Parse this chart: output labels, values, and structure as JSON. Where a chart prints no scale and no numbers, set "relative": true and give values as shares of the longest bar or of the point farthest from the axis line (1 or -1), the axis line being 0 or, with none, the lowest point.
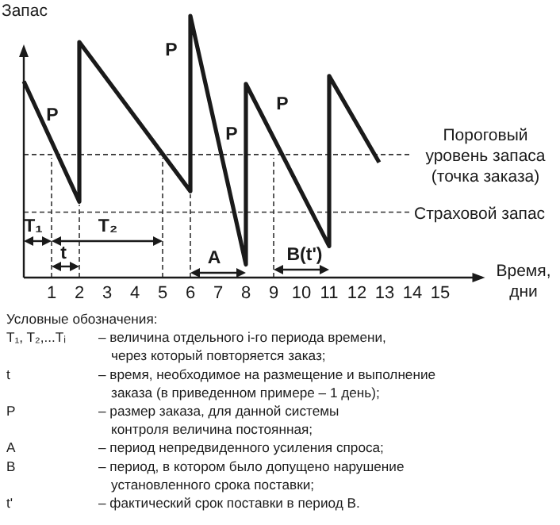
{
  "chart_data": {
    "type": "line",
    "relative": true,
    "ylabel": "Запас",
    "xlabel": "Время,\nдни",
    "xlim": [
      0,
      16.5
    ],
    "xticks": [
      1,
      2,
      3,
      4,
      5,
      6,
      7,
      8,
      9,
      10,
      11,
      12,
      13,
      14,
      15
    ],
    "tick_labels": "x",
    "grid": false,
    "marker": "none",
    "line_style": "solid",
    "series": [
      {
        "color": "#1a1a1a",
        "x": [
          0,
          2,
          2,
          6,
          6,
          8,
          8,
          11,
          11,
          12.8
        ],
        "values": [
          0.75,
          0.29,
          0.9,
          0.33,
          1.0,
          0.05,
          0.74,
          0.12,
          0.77,
          0.44
        ]
      }
    ],
    "ref_lines": [
      {
        "axis": "y",
        "value": 0.47,
        "label": "Пороговый\nуровень запаса\n(точка заказа)",
        "line_style": "dashed"
      },
      {
        "axis": "y",
        "value": 0.25,
        "label": "Страховой запас",
        "line_style": "dashed"
      },
      {
        "axis": "x",
        "value": 1,
        "line_style": "dashed"
      },
      {
        "axis": "x",
        "value": 2,
        "line_style": "dashed"
      },
      {
        "axis": "x",
        "value": 5,
        "line_style": "dashed"
      },
      {
        "axis": "x",
        "value": 6,
        "line_style": "dashed"
      },
      {
        "axis": "x",
        "value": 9,
        "line_style": "dashed"
      }
    ],
    "annotations": [
      "P",
      "P",
      "P",
      "P",
      "T₁",
      "t",
      "T₂",
      "A",
      "B(t')",
      "Условные обозначения:",
      "T₁, T₂,...Tᵢ\t– величина отдельного i-го периода времени,\n через который повторяется заказ;",
      "t\t– время, необходимое на размещение и выполнение\n заказа (в приведенном примере – 1 день);",
      "P\t– размер заказа, для данной системы\n контроля величина постоянная;",
      "A\t– период непредвиденного усиления спроса;",
      "B\t– период, в котором было допущено нарушение\n установленного срока поставки;",
      "t'\t– фактический срок поставки в период B."
    ]
  }
}
